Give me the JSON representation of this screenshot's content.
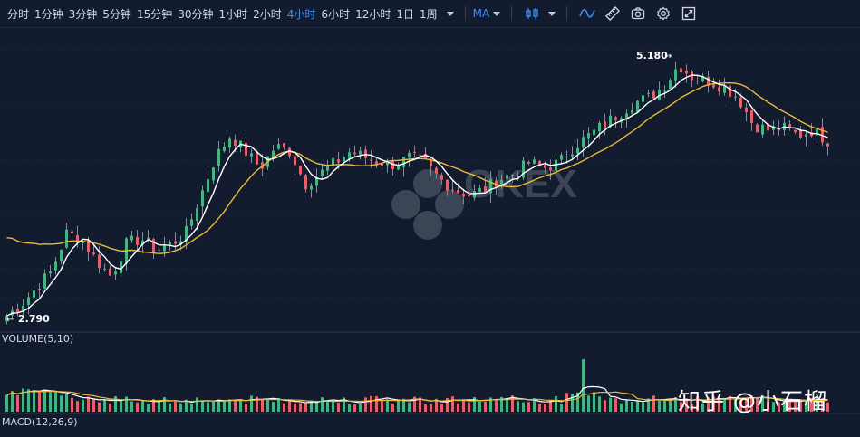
{
  "toolbar": {
    "timeframes": [
      "分时",
      "1分钟",
      "3分钟",
      "5分钟",
      "15分钟",
      "30分钟",
      "1小时",
      "2小时",
      "4小时",
      "6小时",
      "12小时",
      "1日",
      "1周"
    ],
    "active_timeframe": "4小时",
    "indicator": "MA",
    "icons": [
      "candle-type-icon",
      "line-icon",
      "ruler-icon",
      "camera-icon",
      "gear-icon",
      "fullscreen-icon"
    ]
  },
  "colors": {
    "background": "#131c2e",
    "up": "#46b384",
    "down": "#e0626d",
    "ma_fast": "#ffffff",
    "ma_slow": "#e8b93a",
    "accent": "#3d8ff5"
  },
  "logo_text": "OKEX",
  "panels": {
    "volume_label": "VOLUME(5,10)",
    "macd_label": "MACD(12,26,9)"
  },
  "annotations": {
    "high_label": "5.180",
    "low_label": "2.790"
  },
  "watermark": "知乎 @小石榴",
  "chart_data": {
    "type": "candlestick",
    "price_range": [
      2.79,
      5.18
    ],
    "close_path": [
      2.79,
      2.9,
      3.05,
      3.2,
      3.55,
      3.5,
      3.3,
      3.15,
      3.45,
      3.5,
      3.4,
      3.45,
      3.55,
      3.9,
      4.25,
      4.45,
      4.3,
      4.15,
      4.35,
      4.3,
      4.0,
      4.1,
      4.2,
      4.3,
      4.25,
      4.2,
      4.18,
      4.25,
      4.2,
      4.05,
      3.95,
      3.9,
      3.95,
      4.05,
      4.1,
      4.2,
      4.15,
      4.2,
      4.35,
      4.45,
      4.55,
      4.65,
      4.75,
      4.8,
      4.9,
      5.1,
      4.98,
      4.95,
      4.9,
      4.8,
      4.55,
      4.5,
      4.52,
      4.45,
      4.5,
      4.4
    ],
    "high": 5.18,
    "low": 2.79,
    "volume_spike_position": 0.7
  }
}
